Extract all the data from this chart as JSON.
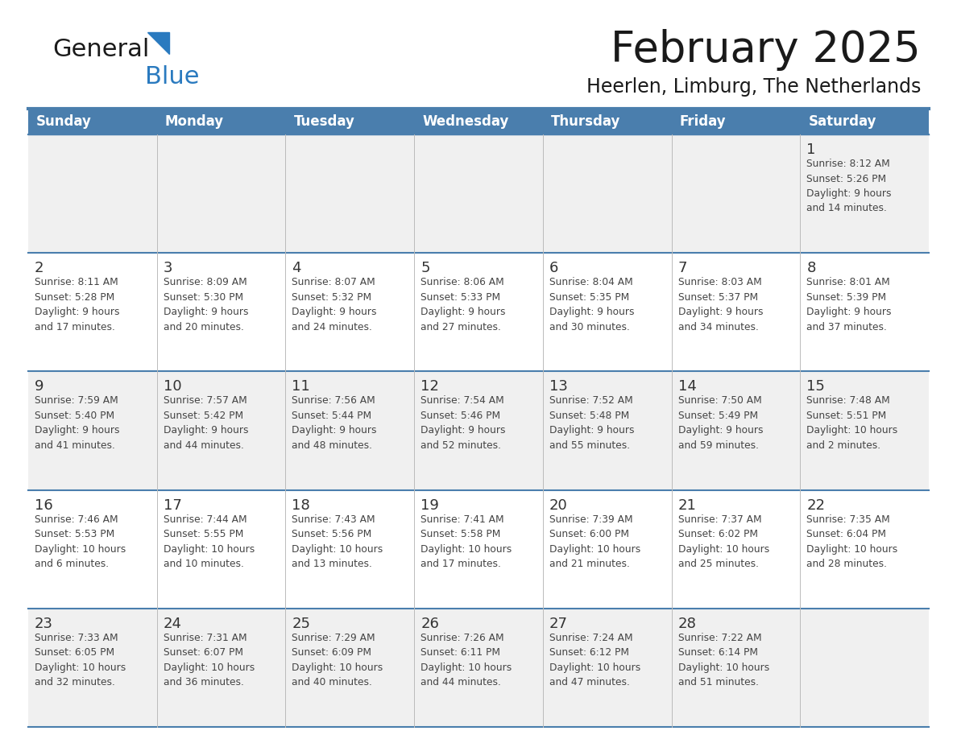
{
  "title": "February 2025",
  "subtitle": "Heerlen, Limburg, The Netherlands",
  "days_of_week": [
    "Sunday",
    "Monday",
    "Tuesday",
    "Wednesday",
    "Thursday",
    "Friday",
    "Saturday"
  ],
  "header_bg": "#4a7ead",
  "header_text": "#ffffff",
  "row_bg_odd": "#f0f0f0",
  "row_bg_even": "#ffffff",
  "separator_color": "#4a7ead",
  "day_number_color": "#333333",
  "text_color": "#444444",
  "title_color": "#1a1a1a",
  "logo_general_color": "#1a1a1a",
  "logo_blue_color": "#2a7abf",
  "calendar_data": [
    [
      {
        "day": null,
        "info": ""
      },
      {
        "day": null,
        "info": ""
      },
      {
        "day": null,
        "info": ""
      },
      {
        "day": null,
        "info": ""
      },
      {
        "day": null,
        "info": ""
      },
      {
        "day": null,
        "info": ""
      },
      {
        "day": 1,
        "info": "Sunrise: 8:12 AM\nSunset: 5:26 PM\nDaylight: 9 hours\nand 14 minutes."
      }
    ],
    [
      {
        "day": 2,
        "info": "Sunrise: 8:11 AM\nSunset: 5:28 PM\nDaylight: 9 hours\nand 17 minutes."
      },
      {
        "day": 3,
        "info": "Sunrise: 8:09 AM\nSunset: 5:30 PM\nDaylight: 9 hours\nand 20 minutes."
      },
      {
        "day": 4,
        "info": "Sunrise: 8:07 AM\nSunset: 5:32 PM\nDaylight: 9 hours\nand 24 minutes."
      },
      {
        "day": 5,
        "info": "Sunrise: 8:06 AM\nSunset: 5:33 PM\nDaylight: 9 hours\nand 27 minutes."
      },
      {
        "day": 6,
        "info": "Sunrise: 8:04 AM\nSunset: 5:35 PM\nDaylight: 9 hours\nand 30 minutes."
      },
      {
        "day": 7,
        "info": "Sunrise: 8:03 AM\nSunset: 5:37 PM\nDaylight: 9 hours\nand 34 minutes."
      },
      {
        "day": 8,
        "info": "Sunrise: 8:01 AM\nSunset: 5:39 PM\nDaylight: 9 hours\nand 37 minutes."
      }
    ],
    [
      {
        "day": 9,
        "info": "Sunrise: 7:59 AM\nSunset: 5:40 PM\nDaylight: 9 hours\nand 41 minutes."
      },
      {
        "day": 10,
        "info": "Sunrise: 7:57 AM\nSunset: 5:42 PM\nDaylight: 9 hours\nand 44 minutes."
      },
      {
        "day": 11,
        "info": "Sunrise: 7:56 AM\nSunset: 5:44 PM\nDaylight: 9 hours\nand 48 minutes."
      },
      {
        "day": 12,
        "info": "Sunrise: 7:54 AM\nSunset: 5:46 PM\nDaylight: 9 hours\nand 52 minutes."
      },
      {
        "day": 13,
        "info": "Sunrise: 7:52 AM\nSunset: 5:48 PM\nDaylight: 9 hours\nand 55 minutes."
      },
      {
        "day": 14,
        "info": "Sunrise: 7:50 AM\nSunset: 5:49 PM\nDaylight: 9 hours\nand 59 minutes."
      },
      {
        "day": 15,
        "info": "Sunrise: 7:48 AM\nSunset: 5:51 PM\nDaylight: 10 hours\nand 2 minutes."
      }
    ],
    [
      {
        "day": 16,
        "info": "Sunrise: 7:46 AM\nSunset: 5:53 PM\nDaylight: 10 hours\nand 6 minutes."
      },
      {
        "day": 17,
        "info": "Sunrise: 7:44 AM\nSunset: 5:55 PM\nDaylight: 10 hours\nand 10 minutes."
      },
      {
        "day": 18,
        "info": "Sunrise: 7:43 AM\nSunset: 5:56 PM\nDaylight: 10 hours\nand 13 minutes."
      },
      {
        "day": 19,
        "info": "Sunrise: 7:41 AM\nSunset: 5:58 PM\nDaylight: 10 hours\nand 17 minutes."
      },
      {
        "day": 20,
        "info": "Sunrise: 7:39 AM\nSunset: 6:00 PM\nDaylight: 10 hours\nand 21 minutes."
      },
      {
        "day": 21,
        "info": "Sunrise: 7:37 AM\nSunset: 6:02 PM\nDaylight: 10 hours\nand 25 minutes."
      },
      {
        "day": 22,
        "info": "Sunrise: 7:35 AM\nSunset: 6:04 PM\nDaylight: 10 hours\nand 28 minutes."
      }
    ],
    [
      {
        "day": 23,
        "info": "Sunrise: 7:33 AM\nSunset: 6:05 PM\nDaylight: 10 hours\nand 32 minutes."
      },
      {
        "day": 24,
        "info": "Sunrise: 7:31 AM\nSunset: 6:07 PM\nDaylight: 10 hours\nand 36 minutes."
      },
      {
        "day": 25,
        "info": "Sunrise: 7:29 AM\nSunset: 6:09 PM\nDaylight: 10 hours\nand 40 minutes."
      },
      {
        "day": 26,
        "info": "Sunrise: 7:26 AM\nSunset: 6:11 PM\nDaylight: 10 hours\nand 44 minutes."
      },
      {
        "day": 27,
        "info": "Sunrise: 7:24 AM\nSunset: 6:12 PM\nDaylight: 10 hours\nand 47 minutes."
      },
      {
        "day": 28,
        "info": "Sunrise: 7:22 AM\nSunset: 6:14 PM\nDaylight: 10 hours\nand 51 minutes."
      },
      {
        "day": null,
        "info": ""
      }
    ]
  ],
  "fig_width": 11.88,
  "fig_height": 9.18,
  "dpi": 100
}
